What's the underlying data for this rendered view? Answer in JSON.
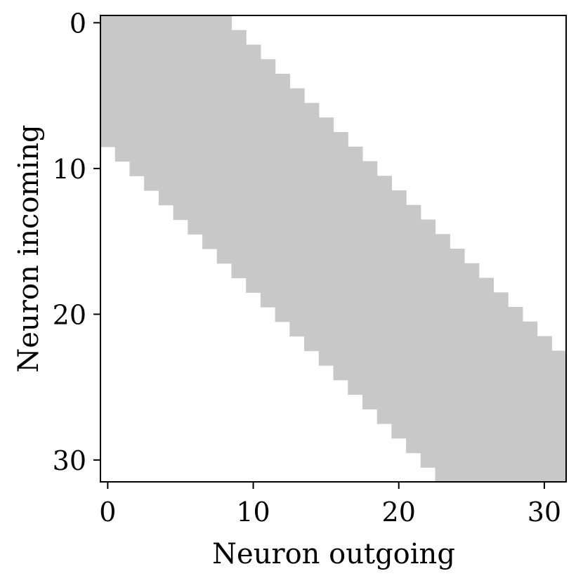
{
  "chart_data": {
    "type": "heatmap",
    "title": "",
    "xlabel": "Neuron outgoing",
    "ylabel": "Neuron incoming",
    "n": 32,
    "xlim": [
      -0.5,
      31.5
    ],
    "ylim": [
      31.5,
      -0.5
    ],
    "x_ticks": [
      0,
      10,
      20,
      30
    ],
    "y_ticks": [
      0,
      10,
      20,
      30
    ],
    "grid": false,
    "band": {
      "lower_offset": -8,
      "upper_offset": 8
    },
    "colors": {
      "filled": "#c8c8c8",
      "empty": "#ffffff",
      "axes": "#000000"
    }
  }
}
